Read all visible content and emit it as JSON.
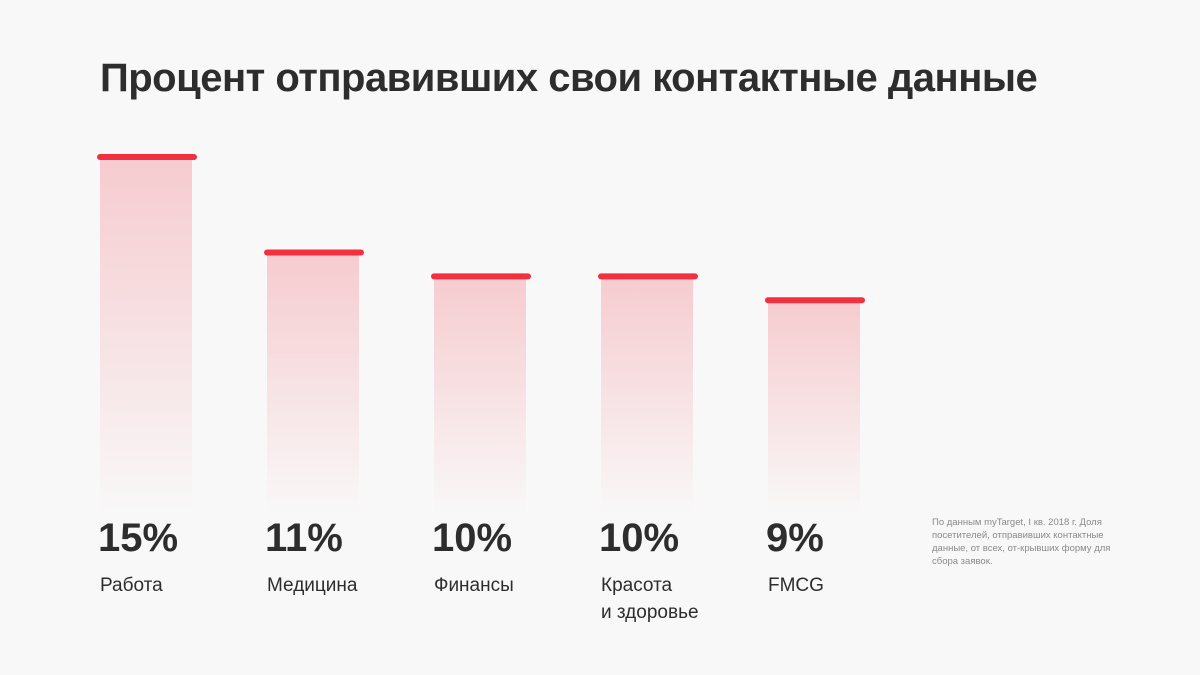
{
  "title": "Процент отправивших свои контактные данные",
  "source_note": "По данным myTarget, I кв. 2018 г. Доля посетителей, отправивших контактные данные, от всех, от-крывших форму для сбора заявок.",
  "colors": {
    "accent": "#f1313f",
    "bar_fill": "#f7d3d6",
    "background": "#f8f8f8",
    "text": "#2d2d2d"
  },
  "chart_data": {
    "type": "bar",
    "title": "Процент отправивших свои контактные данные",
    "categories": [
      "Работа",
      "Медицина",
      "Финансы",
      "Красота\nи здоровье",
      "FMCG"
    ],
    "values": [
      15,
      11,
      10,
      10,
      9
    ],
    "value_labels": [
      "15%",
      "11%",
      "10%",
      "10%",
      "9%"
    ],
    "ylim": [
      0,
      15
    ],
    "grid": false,
    "legend": "none"
  }
}
